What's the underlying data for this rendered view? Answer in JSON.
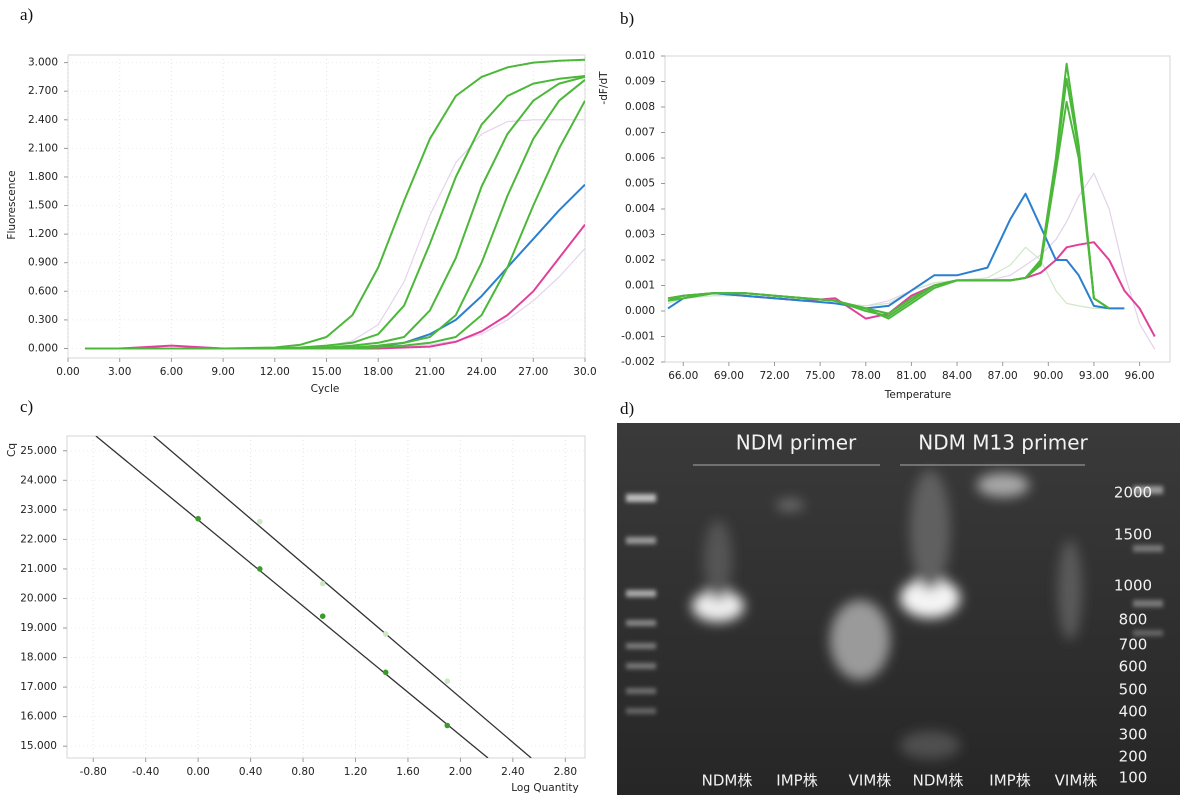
{
  "chart_data": [
    {
      "type": "line",
      "panel_label": "a)",
      "xlabel": "Cycle",
      "ylabel": "Fluorescence",
      "grid": true,
      "xlim": [
        0,
        30
      ],
      "ylim": [
        -0.1,
        3.08
      ],
      "xticks": [
        {
          "value": 0,
          "label": "0.00"
        },
        {
          "value": 3,
          "label": "3.00"
        },
        {
          "value": 6,
          "label": "6.00"
        },
        {
          "value": 9,
          "label": "9.00"
        },
        {
          "value": 12,
          "label": "12.00"
        },
        {
          "value": 15,
          "label": "15.00"
        },
        {
          "value": 18,
          "label": "18.00"
        },
        {
          "value": 21,
          "label": "21.00"
        },
        {
          "value": 24,
          "label": "24.00"
        },
        {
          "value": 27,
          "label": "27.00"
        },
        {
          "value": 30,
          "label": "30.0"
        }
      ],
      "yticks": [
        {
          "value": 0,
          "label": "0.000"
        },
        {
          "value": 0.3,
          "label": "0.300"
        },
        {
          "value": 0.6,
          "label": "0.600"
        },
        {
          "value": 0.9,
          "label": "0.900"
        },
        {
          "value": 1.2,
          "label": "1.200"
        },
        {
          "value": 1.5,
          "label": "1.500"
        },
        {
          "value": 1.8,
          "label": "1.800"
        },
        {
          "value": 2.1,
          "label": "2.100"
        },
        {
          "value": 2.4,
          "label": "2.400"
        },
        {
          "value": 2.7,
          "label": "2.700"
        },
        {
          "value": 3.0,
          "label": "3.000"
        }
      ],
      "x": [
        1,
        3,
        6,
        9,
        12,
        13.5,
        15,
        16.5,
        18,
        19.5,
        21,
        22.5,
        24,
        25.5,
        27,
        28.5,
        30
      ],
      "series": [
        {
          "color": "#e6d3ee",
          "values": [
            0,
            0,
            0,
            0,
            0,
            0,
            0.02,
            0.08,
            0.25,
            0.7,
            1.4,
            1.95,
            2.25,
            2.38,
            2.4,
            2.4,
            2.4
          ]
        },
        {
          "color": "#e6d3ee",
          "values": [
            0,
            0,
            0,
            0,
            0,
            0,
            0,
            0,
            0.01,
            0.02,
            0.04,
            0.08,
            0.15,
            0.3,
            0.5,
            0.75,
            1.05
          ]
        },
        {
          "color": "#e0409a",
          "values": [
            0,
            0,
            0.03,
            0,
            0,
            0,
            0,
            0,
            0,
            0.01,
            0.02,
            0.07,
            0.18,
            0.35,
            0.6,
            0.95,
            1.3
          ]
        },
        {
          "color": "#2b7fd0",
          "values": [
            0,
            0,
            0,
            0,
            0,
            0,
            0,
            0.01,
            0.02,
            0.06,
            0.15,
            0.3,
            0.55,
            0.85,
            1.15,
            1.45,
            1.72
          ]
        },
        {
          "color": "#4cb83a",
          "values": [
            0,
            0,
            0,
            0,
            0.01,
            0.04,
            0.12,
            0.35,
            0.85,
            1.55,
            2.2,
            2.65,
            2.85,
            2.95,
            3.0,
            3.02,
            3.03
          ]
        },
        {
          "color": "#4cb83a",
          "values": [
            0,
            0,
            0,
            0,
            0,
            0.01,
            0.03,
            0.06,
            0.15,
            0.45,
            1.1,
            1.8,
            2.35,
            2.65,
            2.78,
            2.83,
            2.86
          ]
        },
        {
          "color": "#4cb83a",
          "values": [
            0,
            0,
            0,
            0,
            0,
            0,
            0.01,
            0.03,
            0.06,
            0.12,
            0.4,
            0.95,
            1.7,
            2.25,
            2.6,
            2.78,
            2.85
          ]
        },
        {
          "color": "#4cb83a",
          "values": [
            0,
            0,
            0,
            0,
            0,
            0,
            0,
            0.01,
            0.03,
            0.06,
            0.12,
            0.35,
            0.9,
            1.6,
            2.2,
            2.6,
            2.82
          ]
        },
        {
          "color": "#4cb83a",
          "values": [
            0,
            0,
            0,
            0,
            0,
            0,
            0,
            0,
            0.01,
            0.03,
            0.06,
            0.12,
            0.35,
            0.85,
            1.5,
            2.1,
            2.6
          ]
        }
      ]
    },
    {
      "type": "line",
      "panel_label": "b)",
      "xlabel": "Temperature",
      "ylabel": "-dF/dT",
      "grid": false,
      "xlim": [
        64.8,
        98
      ],
      "ylim": [
        -0.002,
        0.01
      ],
      "xticks": [
        {
          "value": 66,
          "label": "66.00"
        },
        {
          "value": 69,
          "label": "69.00"
        },
        {
          "value": 72,
          "label": "72.00"
        },
        {
          "value": 75,
          "label": "75.00"
        },
        {
          "value": 78,
          "label": "78.00"
        },
        {
          "value": 81,
          "label": "81.00"
        },
        {
          "value": 84,
          "label": "84.00"
        },
        {
          "value": 87,
          "label": "87.00"
        },
        {
          "value": 90,
          "label": "90.00"
        },
        {
          "value": 93,
          "label": "93.00"
        },
        {
          "value": 96,
          "label": "96.00"
        }
      ],
      "yticks": [
        {
          "value": -0.002,
          "label": "-0.002"
        },
        {
          "value": -0.001,
          "label": "-0.001"
        },
        {
          "value": 0,
          "label": "0.000"
        },
        {
          "value": 0.001,
          "label": "0.001"
        },
        {
          "value": 0.002,
          "label": "0.002"
        },
        {
          "value": 0.003,
          "label": "0.003"
        },
        {
          "value": 0.004,
          "label": "0.004"
        },
        {
          "value": 0.005,
          "label": "0.005"
        },
        {
          "value": 0.006,
          "label": "0.006"
        },
        {
          "value": 0.007,
          "label": "0.007"
        },
        {
          "value": 0.008,
          "label": "0.008"
        },
        {
          "value": 0.009,
          "label": "0.009"
        },
        {
          "value": 0.01,
          "label": "0.010"
        }
      ],
      "x": [
        65,
        66,
        68,
        70,
        72,
        74,
        76,
        78,
        79.5,
        81,
        82.5,
        84,
        86,
        87.5,
        88.5,
        89.5,
        90.5,
        91.2,
        92,
        93,
        94,
        95,
        96,
        97
      ],
      "series": [
        {
          "color": "#e2d2ec",
          "values": [
            0.0003,
            0.0005,
            0.0006,
            0.0006,
            0.0005,
            0.0004,
            0.0003,
            0.0002,
            0.0004,
            0.0008,
            0.0011,
            0.0012,
            0.0012,
            0.0014,
            0.0018,
            0.0022,
            0.0028,
            0.0035,
            0.0045,
            0.0054,
            0.004,
            0.0015,
            -0.0005,
            -0.0015
          ]
        },
        {
          "color": "#cfe8c6",
          "values": [
            0.0003,
            0.0005,
            0.0006,
            0.0006,
            0.0005,
            0.0004,
            0.0003,
            0.0002,
            0.0003,
            0.0008,
            0.0011,
            0.0012,
            0.0013,
            0.0018,
            0.0025,
            0.002,
            0.0008,
            0.0003,
            0.0002,
            0.0001,
            0.0001,
            null,
            null,
            null
          ]
        },
        {
          "color": "#e0409a",
          "values": [
            0.0005,
            0.0006,
            0.0007,
            0.0006,
            0.0005,
            0.0004,
            0.0005,
            -0.0003,
            -0.0001,
            0.0006,
            0.001,
            0.0012,
            0.0012,
            0.0012,
            0.0013,
            0.0015,
            0.002,
            0.0025,
            0.0026,
            0.0027,
            0.002,
            0.0008,
            0.0001,
            -0.001
          ]
        },
        {
          "color": "#2b7fd0",
          "values": [
            0.0001,
            0.0005,
            0.0007,
            0.0006,
            0.0005,
            0.0004,
            0.0003,
            0.0001,
            0.0002,
            0.0008,
            0.0014,
            0.0014,
            0.0017,
            0.0036,
            0.0046,
            0.0033,
            0.002,
            0.002,
            0.0014,
            0.0002,
            0.0001,
            0.0001,
            null,
            null
          ]
        },
        {
          "color": "#4cb83a",
          "values": [
            0.0004,
            0.0005,
            0.0007,
            0.0007,
            0.0006,
            0.0005,
            0.0004,
            0.0,
            -0.0002,
            0.0004,
            0.001,
            0.0012,
            0.0012,
            0.0012,
            0.0013,
            0.0018,
            0.0055,
            0.0082,
            0.006,
            0.0005,
            0.0001,
            null,
            null,
            null
          ]
        },
        {
          "color": "#4cb83a",
          "values": [
            0.0005,
            0.0006,
            0.0007,
            0.0007,
            0.0006,
            0.0005,
            0.0004,
            0.0001,
            -0.0003,
            0.0003,
            0.0009,
            0.0012,
            0.0012,
            0.0012,
            0.0013,
            0.0019,
            0.0058,
            0.0091,
            0.0063,
            0.0005,
            0.0001,
            null,
            null,
            null
          ]
        },
        {
          "color": "#4cb83a",
          "values": [
            0.0004,
            0.0006,
            0.0007,
            0.0007,
            0.0006,
            0.0005,
            0.0004,
            0.0001,
            -0.0001,
            0.0005,
            0.001,
            0.0012,
            0.0012,
            0.0012,
            0.0013,
            0.002,
            0.006,
            0.0097,
            0.0065,
            0.0005,
            0.0001,
            null,
            null,
            null
          ]
        }
      ]
    },
    {
      "type": "scatter",
      "panel_label": "c)",
      "xlabel": "Log Quantity",
      "ylabel": "Cq",
      "grid": true,
      "xlim": [
        -1.0,
        2.95
      ],
      "ylim": [
        14.6,
        25.5
      ],
      "xticks": [
        {
          "value": -0.8,
          "label": "-0.80"
        },
        {
          "value": -0.4,
          "label": "-0.40"
        },
        {
          "value": 0,
          "label": "0.00"
        },
        {
          "value": 0.4,
          "label": "0.40"
        },
        {
          "value": 0.8,
          "label": "0.80"
        },
        {
          "value": 1.2,
          "label": "1.20"
        },
        {
          "value": 1.6,
          "label": "1.60"
        },
        {
          "value": 2.0,
          "label": "2.00"
        },
        {
          "value": 2.4,
          "label": "2.40"
        },
        {
          "value": 2.8,
          "label": "2.80"
        }
      ],
      "yticks": [
        {
          "value": 15,
          "label": "15.000"
        },
        {
          "value": 16,
          "label": "16.000"
        },
        {
          "value": 17,
          "label": "17.000"
        },
        {
          "value": 18,
          "label": "18.000"
        },
        {
          "value": 19,
          "label": "19.000"
        },
        {
          "value": 20,
          "label": "20.000"
        },
        {
          "value": 21,
          "label": "21.000"
        },
        {
          "value": 22,
          "label": "22.000"
        },
        {
          "value": 23,
          "label": "23.000"
        },
        {
          "value": 24,
          "label": "24.000"
        },
        {
          "value": 25,
          "label": "25.000"
        }
      ],
      "series": [
        {
          "mode": "line",
          "color": "#333333",
          "x": [
            -0.78,
            2.21
          ],
          "values": [
            25.5,
            14.6
          ]
        },
        {
          "mode": "line",
          "color": "#333333",
          "x": [
            -0.34,
            2.54
          ],
          "values": [
            25.5,
            14.6
          ]
        },
        {
          "mode": "markers",
          "color": "#cde8c4",
          "x": [
            0.47,
            0.95,
            1.43,
            1.9
          ],
          "values": [
            22.6,
            20.5,
            18.8,
            17.2
          ]
        },
        {
          "mode": "markers",
          "color": "#3a9a2a",
          "x": [
            0,
            0.47,
            0.95,
            1.43,
            1.9
          ],
          "values": [
            22.7,
            21.0,
            19.4,
            17.5,
            15.7
          ]
        }
      ]
    }
  ],
  "gel": {
    "panel_label": "d)",
    "primers": [
      "NDM primer",
      "NDM M13 primer"
    ],
    "lanes": [
      "NDM株",
      "IMP株",
      "VIM株",
      "NDM株",
      "IMP株",
      "VIM株"
    ],
    "ladder": [
      2000,
      1500,
      1000,
      800,
      700,
      600,
      500,
      400,
      300,
      200,
      100
    ]
  }
}
